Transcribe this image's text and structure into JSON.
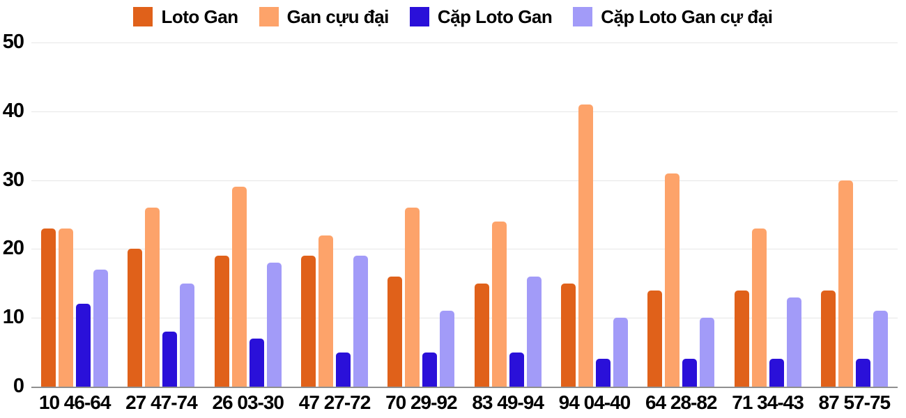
{
  "chart_data": {
    "type": "bar",
    "title": "",
    "xlabel": "",
    "ylabel": "",
    "categories": [
      "10 46-64",
      "27 47-74",
      "26 03-30",
      "47 27-72",
      "70 29-92",
      "83 49-94",
      "94 04-40",
      "64 28-82",
      "71 34-43",
      "87 57-75"
    ],
    "series": [
      {
        "name": "Loto Gan",
        "color": "#e0611a",
        "values": [
          23,
          20,
          19,
          19,
          16,
          15,
          15,
          14,
          14,
          14
        ]
      },
      {
        "name": "Gan cựu đại",
        "color": "#fda36a",
        "values": [
          23,
          26,
          29,
          22,
          26,
          24,
          41,
          31,
          23,
          30
        ]
      },
      {
        "name": "Cặp Loto Gan",
        "color": "#2a10d9",
        "values": [
          12,
          8,
          7,
          5,
          5,
          5,
          4,
          4,
          4,
          4
        ]
      },
      {
        "name": "Cặp Loto Gan cự đại",
        "color": "#a29bf8",
        "values": [
          17,
          15,
          18,
          19,
          11,
          16,
          10,
          10,
          13,
          11
        ]
      }
    ],
    "ylim": [
      0,
      50
    ],
    "yticks": [
      0,
      10,
      20,
      30,
      40,
      50
    ],
    "grid": true,
    "legend_position": "top"
  },
  "colors": {
    "background": "#ffffff",
    "gridline": "#e6e6e6",
    "axis_line": "#8f8f8f",
    "text": "#000000"
  }
}
